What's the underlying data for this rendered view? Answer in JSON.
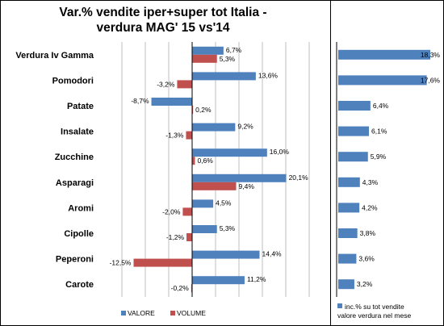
{
  "title_line1": "Var.%  vendite iper+super  tot Italia  -",
  "title_line2": "verdura MAG' 15 vs'14",
  "colors": {
    "valore": "#4F81BD",
    "volume": "#C0504D",
    "grid": "#BFBFBF",
    "axis": "#000000"
  },
  "chart_data": [
    {
      "type": "bar",
      "orientation": "horizontal",
      "categories": [
        "Verdura Iv Gamma",
        "Pomodori",
        "Patate",
        "Insalate",
        "Zucchine",
        "Asparagi",
        "Aromi",
        "Cipolle",
        "Peperoni",
        "Carote"
      ],
      "series": [
        {
          "name": "VALORE",
          "values": [
            6.7,
            13.6,
            -8.7,
            9.2,
            16.0,
            20.1,
            4.5,
            5.3,
            14.4,
            11.2
          ],
          "labels": [
            "6,7%",
            "13,6%",
            "-8,7%",
            "9,2%",
            "16,0%",
            "20,1%",
            "4,5%",
            "5,3%",
            "14,4%",
            "11,2%"
          ]
        },
        {
          "name": "VOLUME",
          "values": [
            5.3,
            -3.2,
            0.2,
            -1.3,
            0.6,
            9.4,
            -2.0,
            -1.2,
            -12.5,
            -0.2
          ],
          "labels": [
            "5,3%",
            "-3,2%",
            "0,2%",
            "-1,3%",
            "0,6%",
            "9,4%",
            "-2,0%",
            "-1,2%",
            "-12,5%",
            "-0,2%"
          ]
        }
      ],
      "xlim": [
        -15,
        25
      ],
      "grid": true,
      "legend": "bottom"
    },
    {
      "type": "bar",
      "orientation": "horizontal",
      "series": [
        {
          "name": "inc.% su tot vendite valore verdura nel mese",
          "values": [
            18.3,
            17.6,
            6.4,
            6.1,
            5.9,
            4.3,
            4.2,
            3.8,
            3.6,
            3.2
          ],
          "labels": [
            "18,3%",
            "17,6%",
            "6,4%",
            "6,1%",
            "5,9%",
            "4,3%",
            "4,2%",
            "3,8%",
            "3,6%",
            "3,2%"
          ]
        }
      ],
      "legend_line1": "inc.% su tot vendite",
      "legend_line2": "valore verdura nel mese",
      "legend": "bottom"
    }
  ]
}
